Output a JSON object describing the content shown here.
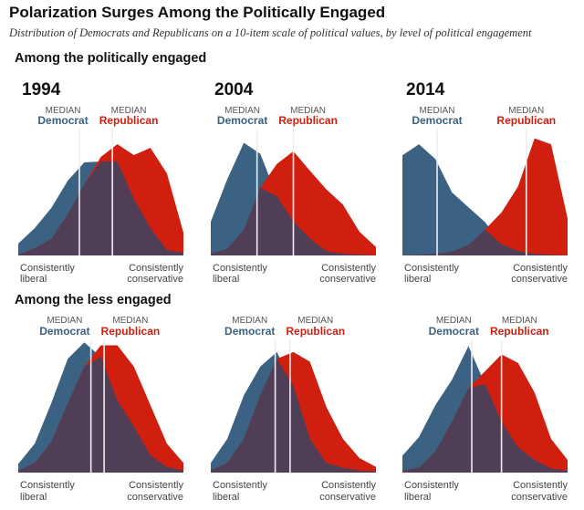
{
  "title": "Polarization Surges Among the Politically Engaged",
  "subtitle": "Distribution of Democrats and Republicans on a 10-item scale of political values, by level of political engagement",
  "sections": {
    "engaged": "Among the politically engaged",
    "less_engaged": "Among the less engaged"
  },
  "labels": {
    "median": "MEDIAN",
    "democrat": "Democrat",
    "republican": "Republican",
    "left_axis": [
      "Consistently",
      "liberal"
    ],
    "right_axis": [
      "Consistently",
      "conservative"
    ]
  },
  "colors": {
    "democrat": "#3b6282",
    "republican": "#d01f0f",
    "overlap": "#4f3e55",
    "median_line": "#eeeeee"
  },
  "chart_data": [
    {
      "type": "area",
      "group": "politically engaged",
      "year": "1994",
      "x": [
        0,
        1,
        2,
        3,
        4,
        5,
        6,
        7,
        8,
        9,
        10
      ],
      "series": [
        {
          "name": "Democrat",
          "values": [
            13,
            30,
            52,
            82,
            102,
            103,
            103,
            62,
            30,
            6,
            3
          ]
        },
        {
          "name": "Republican",
          "values": [
            1,
            8,
            18,
            45,
            78,
            108,
            122,
            110,
            118,
            90,
            25
          ]
        }
      ],
      "medians": {
        "Democrat": 3.7,
        "Republican": 5.7
      },
      "ylim": [
        0,
        130
      ]
    },
    {
      "type": "area",
      "group": "politically engaged",
      "year": "2004",
      "x": [
        0,
        1,
        2,
        3,
        4,
        5,
        6,
        7,
        8,
        9,
        10
      ],
      "series": [
        {
          "name": "Democrat",
          "values": [
            40,
            90,
            133,
            120,
            70,
            40,
            20,
            5,
            2,
            1,
            0
          ]
        },
        {
          "name": "Republican",
          "values": [
            2,
            8,
            30,
            80,
            108,
            123,
            100,
            78,
            60,
            28,
            10
          ]
        }
      ],
      "medians": {
        "Democrat": 2.8,
        "Republican": 5.0
      },
      "ylim": [
        0,
        140
      ]
    },
    {
      "type": "area",
      "group": "politically engaged",
      "year": "2014",
      "x": [
        0,
        1,
        2,
        3,
        4,
        5,
        6,
        7,
        8,
        9,
        10
      ],
      "series": [
        {
          "name": "Democrat",
          "values": [
            135,
            150,
            130,
            85,
            65,
            45,
            15,
            6,
            2,
            1,
            0
          ]
        },
        {
          "name": "Republican",
          "values": [
            0,
            1,
            2,
            5,
            14,
            35,
            58,
            93,
            158,
            150,
            50
          ]
        }
      ],
      "medians": {
        "Democrat": 2.1,
        "Republican": 7.5
      },
      "ylim": [
        0,
        160
      ]
    },
    {
      "type": "area",
      "group": "less engaged",
      "year": "1994",
      "x": [
        0,
        1,
        2,
        3,
        4,
        5,
        6,
        7,
        8,
        9,
        10
      ],
      "series": [
        {
          "name": "Democrat",
          "values": [
            9,
            30,
            72,
            118,
            135,
            120,
            75,
            48,
            18,
            6,
            2
          ]
        },
        {
          "name": "Republican",
          "values": [
            2,
            10,
            32,
            72,
            110,
            132,
            132,
            110,
            70,
            30,
            10
          ]
        }
      ],
      "medians": {
        "Democrat": 4.4,
        "Republican": 5.2
      },
      "ylim": [
        0,
        140
      ]
    },
    {
      "type": "area",
      "group": "less engaged",
      "year": "2004",
      "x": [
        0,
        1,
        2,
        3,
        4,
        5,
        6,
        7,
        8,
        9,
        10
      ],
      "series": [
        {
          "name": "Democrat",
          "values": [
            10,
            35,
            80,
            110,
            125,
            90,
            35,
            10,
            5,
            2,
            1
          ]
        },
        {
          "name": "Republican",
          "values": [
            2,
            10,
            35,
            80,
            118,
            125,
            115,
            68,
            35,
            15,
            6
          ]
        }
      ],
      "medians": {
        "Democrat": 3.9,
        "Republican": 4.8
      },
      "ylim": [
        0,
        140
      ]
    },
    {
      "type": "area",
      "group": "less engaged",
      "year": "2014",
      "x": [
        0,
        1,
        2,
        3,
        4,
        5,
        6,
        7,
        8,
        9,
        10
      ],
      "series": [
        {
          "name": "Democrat",
          "values": [
            20,
            42,
            80,
            110,
            150,
            105,
            60,
            30,
            15,
            5,
            2
          ]
        },
        {
          "name": "Republican",
          "values": [
            2,
            6,
            25,
            60,
            100,
            120,
            140,
            130,
            95,
            40,
            15
          ]
        }
      ],
      "medians": {
        "Democrat": 4.2,
        "Republican": 6.0
      },
      "ylim": [
        0,
        160
      ]
    }
  ]
}
